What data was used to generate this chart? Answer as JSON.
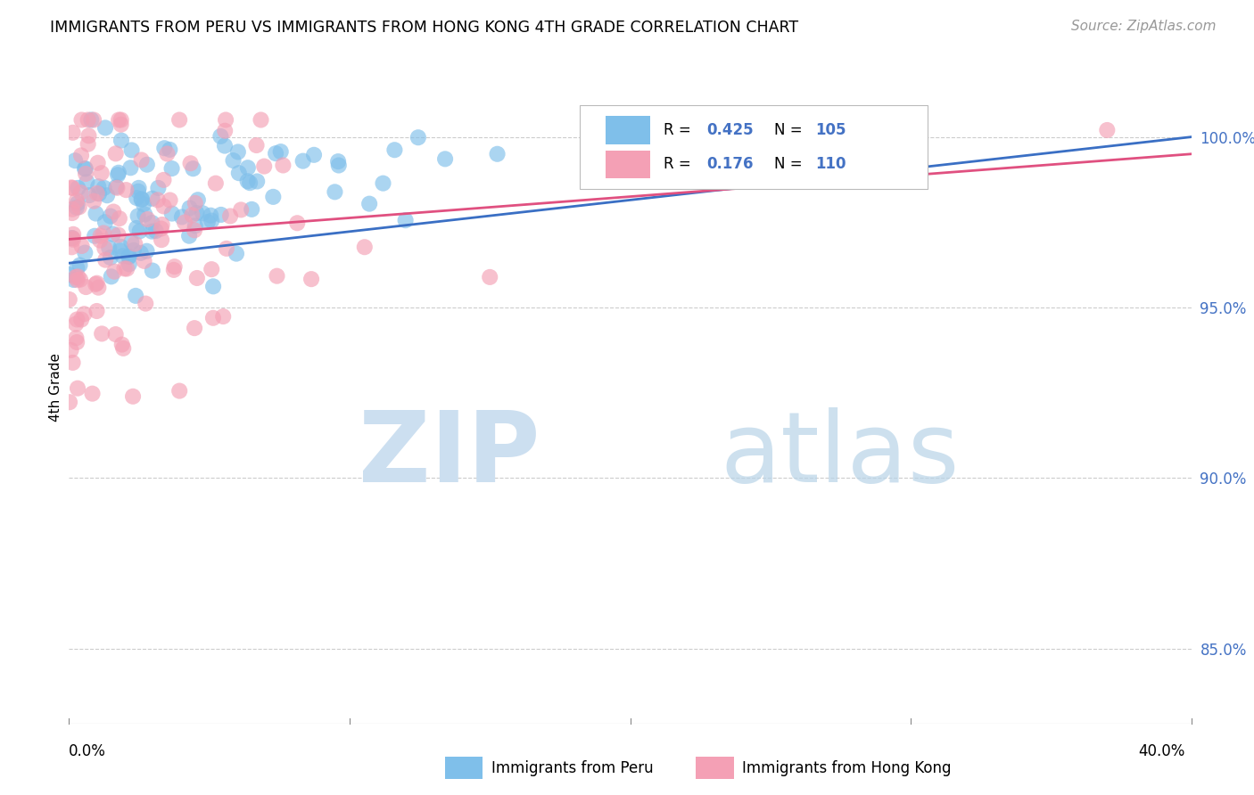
{
  "title": "IMMIGRANTS FROM PERU VS IMMIGRANTS FROM HONG KONG 4TH GRADE CORRELATION CHART",
  "source_text": "Source: ZipAtlas.com",
  "ylabel": "4th Grade",
  "ylabel_right_ticks": [
    "100.0%",
    "95.0%",
    "90.0%",
    "85.0%"
  ],
  "ylabel_right_values": [
    1.0,
    0.95,
    0.9,
    0.85
  ],
  "color_peru": "#7fbfea",
  "color_hk": "#f4a0b5",
  "color_trendline_peru": "#3a6fc4",
  "color_trendline_hk": "#e05080",
  "R_peru": 0.425,
  "N_peru": 105,
  "R_hk": 0.176,
  "N_hk": 110,
  "xmin": 0.0,
  "xmax": 0.4,
  "ymin": 0.828,
  "ymax": 1.025,
  "legend_label_peru": "Immigrants from Peru",
  "legend_label_hk": "Immigrants from Hong Kong",
  "watermark_zip_color": "#ccdff0",
  "watermark_atlas_color": "#b8d4e8"
}
